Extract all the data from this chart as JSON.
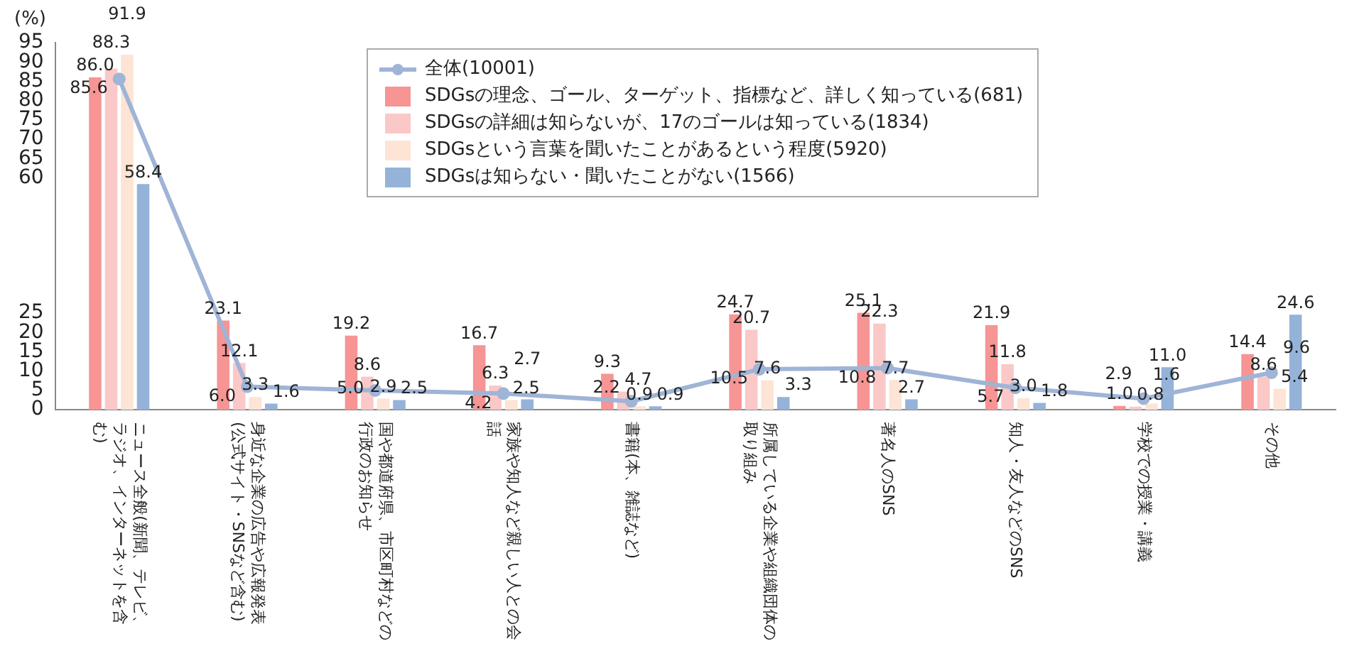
{
  "chart_data": {
    "type": "bar",
    "ylabel": "(%)",
    "categories": [
      "ニュース全般(新聞、テレビ、ラジオ、インターネットを含む)",
      "身近な企業の広告や広報発表(公式サイト・SNSなど含む)",
      "国や都道府県、市区町村などの行政のお知らせ",
      "家族や知人など親しい人との会話",
      "書籍(本、雑誌など)",
      "所属している企業や組織団体の取り組み",
      "著名人のSNS",
      "知人・友人などのSNS",
      "学校での授業・講義",
      "その他"
    ],
    "series": [
      {
        "name": "全体(10001)",
        "type": "line",
        "marker": "circle",
        "color": "#9fb4d6",
        "values": [
          85.6,
          6.0,
          5.0,
          4.2,
          2.2,
          10.5,
          10.8,
          5.7,
          2.9,
          9.6
        ],
        "value_labels": [
          "85.6",
          "6.0",
          "5.0",
          "4.2",
          "2.2",
          "10.5",
          "10.8",
          "5.7",
          "2.9",
          "9.6"
        ]
      },
      {
        "name": "SDGsの理念、ゴール、ターゲット、指標など、詳しく知っている(681)",
        "color": "#f79494",
        "values": [
          86.0,
          23.1,
          19.2,
          16.7,
          9.3,
          24.7,
          25.1,
          21.9,
          1.0,
          14.4
        ],
        "value_labels": [
          "86.0",
          "23.1",
          "19.2",
          "16.7",
          "9.3",
          "24.7",
          "25.1",
          "21.9",
          "1.0",
          "14.4"
        ]
      },
      {
        "name": "SDGsの詳細は知らないが、17のゴールは知っている(1834)",
        "color": "#fbc8c8",
        "values": [
          88.3,
          12.1,
          8.6,
          6.3,
          4.7,
          20.7,
          22.3,
          11.8,
          0.8,
          8.6
        ],
        "value_labels": [
          "88.3",
          "12.1",
          "8.6",
          "6.3",
          "4.7",
          "20.7",
          "22.3",
          "11.8",
          "0.8",
          "8.6"
        ]
      },
      {
        "name": "SDGsという言葉を聞いたことがあるという程度(5920)",
        "color": "#fde4d4",
        "values": [
          91.9,
          3.3,
          2.9,
          2.5,
          0.9,
          7.6,
          7.7,
          3.0,
          1.6,
          5.4
        ],
        "value_labels": [
          "91.9",
          "3.3",
          "2.9",
          "2.5",
          "0.9",
          "7.6",
          "7.7",
          "3.0",
          "1.6",
          "5.4"
        ]
      },
      {
        "name": "SDGsは知らない・聞いたことがない(1566)",
        "color": "#95b3d9",
        "values": [
          58.4,
          1.6,
          2.5,
          2.7,
          0.9,
          3.3,
          2.7,
          1.8,
          11.0,
          24.6
        ],
        "value_labels": [
          "58.4",
          "1.6",
          "2.5",
          "2.7",
          "0.9",
          "3.3",
          "2.7",
          "1.8",
          "11.0",
          "24.6"
        ]
      }
    ],
    "ylim": [
      0,
      95
    ],
    "yticks": [
      0,
      5,
      10,
      15,
      20,
      25,
      60,
      65,
      70,
      75,
      80,
      85,
      90,
      95
    ],
    "legend": "top",
    "grid": false
  }
}
